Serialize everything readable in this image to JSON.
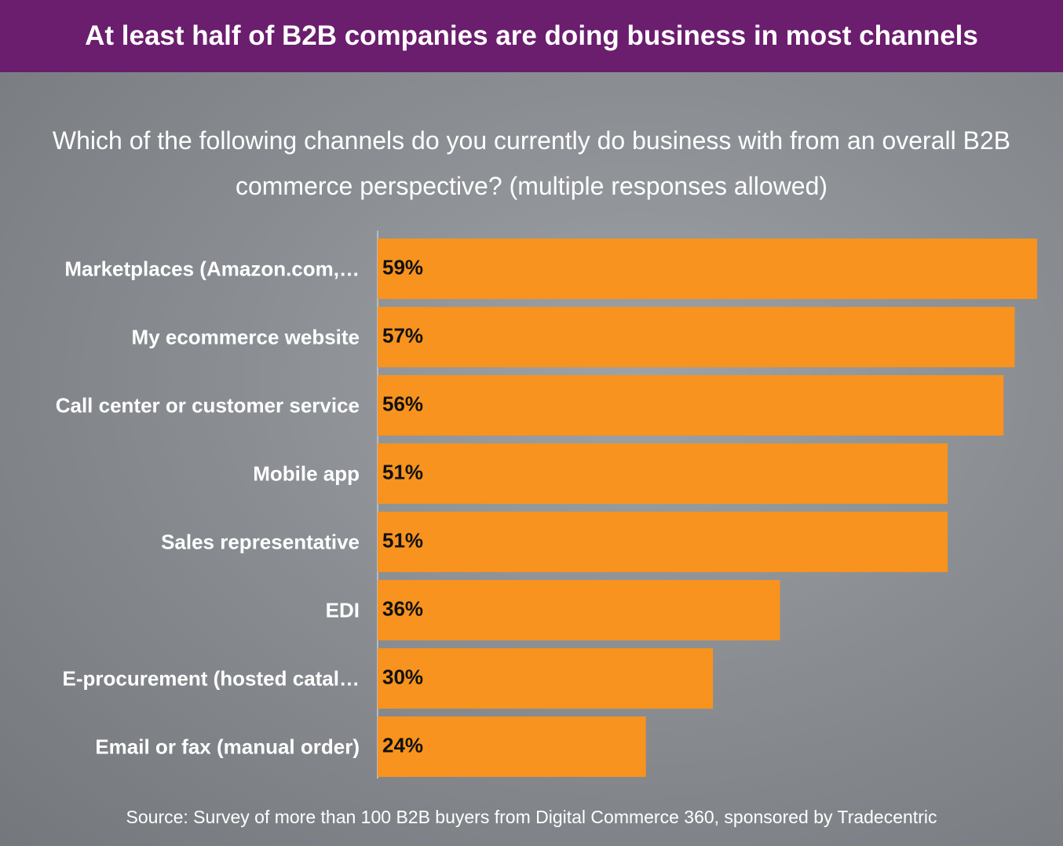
{
  "chart_data": {
    "type": "hbar",
    "title": "At least half of B2B companies are doing business in most channels",
    "subtitle": "Which of the following channels do you currently do business with from an overall B2B commerce perspective? (multiple responses allowed)",
    "source": "Source: Survey of more than 100 B2B buyers from Digital Commerce 360, sponsored by Tradecentric",
    "categories": [
      "Marketplaces (Amazon.com,…",
      "My ecommerce website",
      "Call center or customer service",
      "Mobile app",
      "Sales representative",
      "EDI",
      "E-procurement (hosted catal…",
      "Email or fax (manual order)"
    ],
    "values": [
      59,
      57,
      56,
      51,
      51,
      36,
      30,
      24
    ],
    "value_labels": [
      "59%",
      "57%",
      "56%",
      "51%",
      "51%",
      "36%",
      "30%",
      "24%"
    ],
    "color": "#f7931e",
    "xlim": [
      0,
      59
    ]
  }
}
